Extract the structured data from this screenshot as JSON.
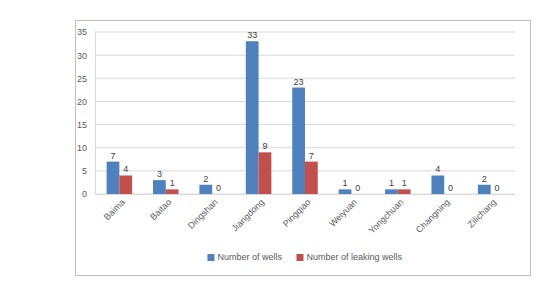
{
  "chart_data": {
    "type": "bar",
    "categories": [
      "Baima",
      "Baitao",
      "Dingshan",
      "Jiangdong",
      "Pingqiao",
      "Weiyuan",
      "Yongchuan",
      "Changning",
      "Zilichang"
    ],
    "series": [
      {
        "name": "Number of wells",
        "color": "#4f81bd",
        "values": [
          7,
          3,
          2,
          33,
          23,
          1,
          1,
          4,
          2
        ]
      },
      {
        "name": "Number of leaking wells",
        "color": "#c0504d",
        "values": [
          4,
          1,
          0,
          9,
          7,
          0,
          1,
          0,
          0
        ]
      }
    ],
    "ylim": [
      0,
      35
    ],
    "yticks": [
      0,
      5,
      10,
      15,
      20,
      25,
      30,
      35
    ],
    "grid": true,
    "data_labels": true,
    "legend": "bottom"
  }
}
